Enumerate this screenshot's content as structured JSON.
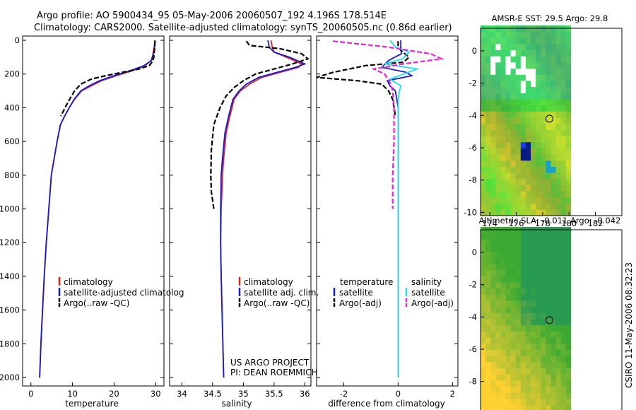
{
  "header": {
    "line1": "Argo profile: AO 5900434_95 05-May-2006 20060507_192 4.196S 178.514E",
    "line2": "Climatology: CARS2000. Satellite-adjusted climatology: synTS_20060505.nc (0.86d earlier)"
  },
  "side_label": "CSIRO 11-May-2006 08:32:23",
  "project": {
    "line1": "US ARGO PROJECT",
    "line2": "PI: DEAN ROEMMICH"
  },
  "colors": {
    "climatology": "#dd2222",
    "satellite": "#1a1acc",
    "argo": "#000000",
    "satellite_sal": "#22ddee",
    "argo_sal": "#ee22dd"
  },
  "chart_data": [
    {
      "type": "line",
      "panel": "temperature",
      "xlabel": "temperature",
      "ylabel": "",
      "xlim": [
        -2,
        32
      ],
      "ylim": [
        2050,
        0
      ],
      "xticks": [
        "0",
        "10",
        "20",
        "30"
      ],
      "xtick_values": [
        0,
        10,
        20,
        30
      ],
      "yticks": [
        "0",
        "200",
        "400",
        "600",
        "800",
        "1000",
        "1200",
        "1400",
        "1600",
        "1800",
        "2000"
      ],
      "ytick_values": [
        0,
        200,
        400,
        600,
        800,
        1000,
        1200,
        1400,
        1600,
        1800,
        2000
      ],
      "legend": [
        "climatology",
        "satellite-adjusted climatolog",
        "Argo(..raw -QC)"
      ],
      "series": [
        {
          "name": "climatology",
          "color": "#dd2222",
          "dash": "solid",
          "x": [
            29.8,
            29.7,
            29.5,
            29.3,
            28.9,
            27.5,
            24.5,
            20.5,
            17,
            14.5,
            12.2,
            10.5,
            9.2,
            8.1,
            7.1,
            6.3,
            5.6,
            4.9,
            4.3,
            3.7,
            3.2,
            2.8,
            2.4,
            2.1
          ],
          "y": [
            0,
            30,
            60,
            90,
            120,
            150,
            180,
            210,
            240,
            270,
            300,
            350,
            400,
            450,
            500,
            600,
            700,
            800,
            1000,
            1200,
            1400,
            1600,
            1800,
            2000
          ]
        },
        {
          "name": "satellite-adjusted climatology",
          "color": "#1a1acc",
          "dash": "solid",
          "x": [
            29.9,
            29.8,
            29.6,
            29.4,
            29.0,
            27.2,
            24.0,
            20.0,
            16.5,
            14.0,
            12.0,
            10.4,
            9.2,
            8.1,
            7.1,
            6.3,
            5.6,
            4.9,
            4.3,
            3.7,
            3.2,
            2.8,
            2.4,
            2.1
          ],
          "y": [
            0,
            30,
            60,
            90,
            120,
            150,
            180,
            210,
            240,
            270,
            300,
            350,
            400,
            450,
            500,
            600,
            700,
            800,
            1000,
            1200,
            1400,
            1600,
            1800,
            2000
          ]
        },
        {
          "name": "Argo(..raw -QC)",
          "color": "#000000",
          "dash": "dashed",
          "x": [
            29.8,
            29.8,
            29.7,
            29.6,
            29.4,
            28.5,
            26,
            22,
            18,
            14.5,
            12.0,
            10.5,
            9.3,
            8.2,
            7.2
          ],
          "y": [
            5,
            30,
            60,
            90,
            120,
            150,
            170,
            190,
            210,
            230,
            260,
            300,
            350,
            400,
            450
          ]
        }
      ]
    },
    {
      "type": "line",
      "panel": "salinity",
      "xlabel": "salinity",
      "xlim": [
        33.8,
        36.1
      ],
      "ylim": [
        2050,
        0
      ],
      "xticks": [
        "34",
        "34.5",
        "35",
        "35.5",
        "36"
      ],
      "xtick_values": [
        34,
        34.5,
        35,
        35.5,
        36
      ],
      "legend": [
        "climatology",
        "satellite adj. clim.",
        "Argo(..raw -QC)"
      ],
      "series": [
        {
          "name": "climatology",
          "color": "#dd2222",
          "dash": "solid",
          "x": [
            35.45,
            35.47,
            35.5,
            35.7,
            35.95,
            35.9,
            35.6,
            35.3,
            35.1,
            34.95,
            34.85,
            34.78,
            34.72,
            34.68,
            34.66,
            34.64,
            34.63,
            34.64,
            34.66,
            34.68
          ],
          "y": [
            0,
            40,
            70,
            100,
            140,
            160,
            190,
            220,
            260,
            300,
            350,
            450,
            550,
            700,
            800,
            1000,
            1200,
            1400,
            1700,
            2000
          ]
        },
        {
          "name": "satellite adjusted climatology",
          "color": "#1a1acc",
          "dash": "solid",
          "x": [
            35.4,
            35.42,
            35.5,
            35.75,
            36.0,
            35.85,
            35.55,
            35.25,
            35.05,
            34.93,
            34.83,
            34.76,
            34.7,
            34.66,
            34.64,
            34.63,
            34.63,
            34.64,
            34.66,
            34.68
          ],
          "y": [
            0,
            40,
            70,
            100,
            140,
            160,
            190,
            220,
            260,
            300,
            350,
            450,
            550,
            700,
            800,
            1000,
            1200,
            1400,
            1700,
            2000
          ]
        },
        {
          "name": "Argo(..raw -QC)",
          "color": "#000000",
          "dash": "dashed",
          "x": [
            35.05,
            35.1,
            35.6,
            35.95,
            36.05,
            35.8,
            35.5,
            35.2,
            35.0,
            34.85,
            34.72,
            34.62,
            34.52,
            34.48,
            34.47,
            34.48,
            34.5,
            34.52
          ],
          "y": [
            5,
            30,
            50,
            80,
            110,
            140,
            170,
            200,
            240,
            280,
            330,
            400,
            500,
            650,
            800,
            900,
            950,
            1000
          ]
        }
      ]
    },
    {
      "type": "line",
      "panel": "difference",
      "xlabel": "difference from climatology",
      "xlim": [
        -3,
        2.2
      ],
      "ylim": [
        2050,
        0
      ],
      "xticks": [
        "-2",
        "0",
        "2"
      ],
      "xtick_values": [
        -2,
        0,
        2
      ],
      "legend_left": {
        "title": "temperature",
        "items": [
          "satellite",
          "Argo(-adj)"
        ]
      },
      "legend_right": {
        "title": "salinity",
        "items": [
          "satellite",
          "Argo(-adj)"
        ]
      },
      "series": [
        {
          "name": "temperature satellite",
          "color": "#1a1acc",
          "dash": "solid",
          "x": [
            0.1,
            0.1,
            0.12,
            -0.35,
            -0.6,
            0.3,
            0.5,
            -0.4,
            -0.3,
            -0.1,
            -0.05,
            0,
            0,
            0,
            0,
            0
          ],
          "y": [
            0,
            40,
            80,
            120,
            160,
            190,
            210,
            240,
            270,
            300,
            350,
            400,
            600,
            1000,
            1500,
            2000
          ]
        },
        {
          "name": "temperature Argo(-adj)",
          "color": "#000000",
          "dash": "dashed",
          "x": [
            0,
            0,
            0.1,
            0.4,
            0.2,
            -1.2,
            -1.8,
            -2.4,
            -3.0,
            -1.5,
            -0.6,
            -0.35,
            -0.2,
            -0.1
          ],
          "y": [
            5,
            30,
            60,
            100,
            130,
            150,
            170,
            190,
            220,
            240,
            260,
            300,
            350,
            450
          ]
        },
        {
          "name": "salinity satellite",
          "color": "#22ddee",
          "dash": "solid",
          "x": [
            -0.3,
            -0.1,
            0.4,
            0.15,
            -0.5,
            0.7,
            0.2,
            -0.3,
            0.1,
            0.05,
            0,
            0,
            0,
            0,
            0
          ],
          "y": [
            0,
            40,
            70,
            110,
            140,
            170,
            200,
            230,
            270,
            300,
            350,
            450,
            700,
            1200,
            2000
          ]
        },
        {
          "name": "salinity Argo(-adj)",
          "color": "#ee22dd",
          "dash": "dashed",
          "x": [
            -2.4,
            -0.4,
            1.2,
            1.6,
            0.2,
            -0.9,
            -0.5,
            -0.3,
            -0.2,
            -0.15,
            -0.15,
            -0.2,
            -0.2
          ],
          "y": [
            5,
            40,
            80,
            110,
            140,
            170,
            200,
            250,
            300,
            400,
            600,
            800,
            1000
          ]
        }
      ]
    },
    {
      "type": "heatmap",
      "panel": "sst_map",
      "title": "AMSR-E SST: 29.5  Argo: 29.8",
      "xlim": [
        173.3,
        184.0
      ],
      "ylim": [
        -10.2,
        1.4
      ],
      "xticks": [
        "174",
        "176",
        "178",
        "180",
        "182"
      ],
      "xtick_values": [
        174,
        176,
        178,
        180,
        182
      ],
      "yticks": [
        "0",
        "-2",
        "-4",
        "-6",
        "-8",
        "-10"
      ],
      "ytick_values": [
        0,
        -2,
        -4,
        -6,
        -8,
        -10
      ],
      "data_xrange": [
        173.3,
        180.0
      ],
      "argo_position": {
        "lon": 178.514,
        "lat": -4.196
      }
    },
    {
      "type": "heatmap",
      "panel": "sla_map",
      "title": "Altimetric SLA: -0.011  Argo: -0.042",
      "xlim": [
        173.3,
        184.0
      ],
      "ylim": [
        -10.2,
        1.4
      ],
      "xticks": [
        "174",
        "176",
        "178",
        "180",
        "182"
      ],
      "xtick_values": [
        174,
        176,
        178,
        180,
        182
      ],
      "yticks": [
        "0",
        "-2",
        "-4",
        "-6",
        "-8",
        "-10"
      ],
      "ytick_values": [
        0,
        -2,
        -4,
        -6,
        -8,
        -10
      ],
      "data_xrange": [
        173.3,
        180.0
      ],
      "argo_position": {
        "lon": 178.514,
        "lat": -4.196
      }
    }
  ]
}
